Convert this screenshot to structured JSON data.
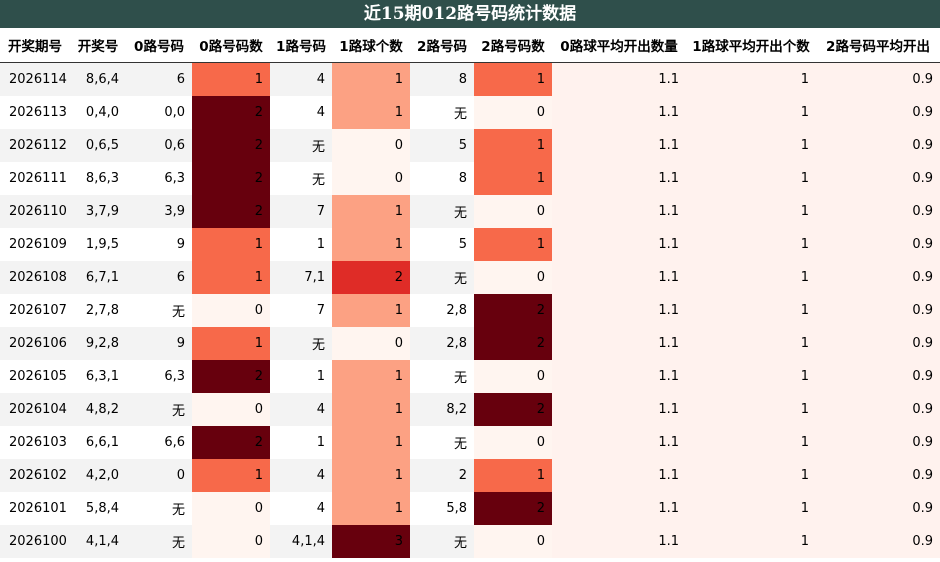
{
  "title": "近15期012路号码统计数据",
  "headers": [
    "开奖期号",
    "开奖号",
    "0路号码",
    "0路号码数",
    "1路号码",
    "1路球个数",
    "2路号码",
    "2路号码数",
    "0路球平均开出数量",
    "1路球平均开出个数",
    "2路号码平均开出"
  ],
  "colors": {
    "title_bg": "#2f4f4b",
    "heat_scale": [
      "#fff5f0",
      "#fca183",
      "#f7694a",
      "#df2c27",
      "#67000d"
    ],
    "average_bg": "#fff2ee"
  },
  "rows": [
    {
      "issue": "2026114",
      "draw": "8,6,4",
      "r0": "6",
      "r0n": "1",
      "r1": "4",
      "r1n": "1",
      "r2": "8",
      "r2n": "1",
      "avg0": "1.1",
      "avg1": "1",
      "avg2": "0.9",
      "h0": 2,
      "h1": 1,
      "h2": 2
    },
    {
      "issue": "2026113",
      "draw": "0,4,0",
      "r0": "0,0",
      "r0n": "2",
      "r1": "4",
      "r1n": "1",
      "r2": "无",
      "r2n": "0",
      "avg0": "1.1",
      "avg1": "1",
      "avg2": "0.9",
      "h0": 4,
      "h1": 1,
      "h2": 0
    },
    {
      "issue": "2026112",
      "draw": "0,6,5",
      "r0": "0,6",
      "r0n": "2",
      "r1": "无",
      "r1n": "0",
      "r2": "5",
      "r2n": "1",
      "avg0": "1.1",
      "avg1": "1",
      "avg2": "0.9",
      "h0": 4,
      "h1": 0,
      "h2": 2
    },
    {
      "issue": "2026111",
      "draw": "8,6,3",
      "r0": "6,3",
      "r0n": "2",
      "r1": "无",
      "r1n": "0",
      "r2": "8",
      "r2n": "1",
      "avg0": "1.1",
      "avg1": "1",
      "avg2": "0.9",
      "h0": 4,
      "h1": 0,
      "h2": 2
    },
    {
      "issue": "2026110",
      "draw": "3,7,9",
      "r0": "3,9",
      "r0n": "2",
      "r1": "7",
      "r1n": "1",
      "r2": "无",
      "r2n": "0",
      "avg0": "1.1",
      "avg1": "1",
      "avg2": "0.9",
      "h0": 4,
      "h1": 1,
      "h2": 0
    },
    {
      "issue": "2026109",
      "draw": "1,9,5",
      "r0": "9",
      "r0n": "1",
      "r1": "1",
      "r1n": "1",
      "r2": "5",
      "r2n": "1",
      "avg0": "1.1",
      "avg1": "1",
      "avg2": "0.9",
      "h0": 2,
      "h1": 1,
      "h2": 2
    },
    {
      "issue": "2026108",
      "draw": "6,7,1",
      "r0": "6",
      "r0n": "1",
      "r1": "7,1",
      "r1n": "2",
      "r2": "无",
      "r2n": "0",
      "avg0": "1.1",
      "avg1": "1",
      "avg2": "0.9",
      "h0": 2,
      "h1": 3,
      "h2": 0
    },
    {
      "issue": "2026107",
      "draw": "2,7,8",
      "r0": "无",
      "r0n": "0",
      "r1": "7",
      "r1n": "1",
      "r2": "2,8",
      "r2n": "2",
      "avg0": "1.1",
      "avg1": "1",
      "avg2": "0.9",
      "h0": 0,
      "h1": 1,
      "h2": 4
    },
    {
      "issue": "2026106",
      "draw": "9,2,8",
      "r0": "9",
      "r0n": "1",
      "r1": "无",
      "r1n": "0",
      "r2": "2,8",
      "r2n": "2",
      "avg0": "1.1",
      "avg1": "1",
      "avg2": "0.9",
      "h0": 2,
      "h1": 0,
      "h2": 4
    },
    {
      "issue": "2026105",
      "draw": "6,3,1",
      "r0": "6,3",
      "r0n": "2",
      "r1": "1",
      "r1n": "1",
      "r2": "无",
      "r2n": "0",
      "avg0": "1.1",
      "avg1": "1",
      "avg2": "0.9",
      "h0": 4,
      "h1": 1,
      "h2": 0
    },
    {
      "issue": "2026104",
      "draw": "4,8,2",
      "r0": "无",
      "r0n": "0",
      "r1": "4",
      "r1n": "1",
      "r2": "8,2",
      "r2n": "2",
      "avg0": "1.1",
      "avg1": "1",
      "avg2": "0.9",
      "h0": 0,
      "h1": 1,
      "h2": 4
    },
    {
      "issue": "2026103",
      "draw": "6,6,1",
      "r0": "6,6",
      "r0n": "2",
      "r1": "1",
      "r1n": "1",
      "r2": "无",
      "r2n": "0",
      "avg0": "1.1",
      "avg1": "1",
      "avg2": "0.9",
      "h0": 4,
      "h1": 1,
      "h2": 0
    },
    {
      "issue": "2026102",
      "draw": "4,2,0",
      "r0": "0",
      "r0n": "1",
      "r1": "4",
      "r1n": "1",
      "r2": "2",
      "r2n": "1",
      "avg0": "1.1",
      "avg1": "1",
      "avg2": "0.9",
      "h0": 2,
      "h1": 1,
      "h2": 2
    },
    {
      "issue": "2026101",
      "draw": "5,8,4",
      "r0": "无",
      "r0n": "0",
      "r1": "4",
      "r1n": "1",
      "r2": "5,8",
      "r2n": "2",
      "avg0": "1.1",
      "avg1": "1",
      "avg2": "0.9",
      "h0": 0,
      "h1": 1,
      "h2": 4
    },
    {
      "issue": "2026100",
      "draw": "4,1,4",
      "r0": "无",
      "r0n": "0",
      "r1": "4,1,4",
      "r1n": "3",
      "r2": "无",
      "r2n": "0",
      "avg0": "1.1",
      "avg1": "1",
      "avg2": "0.9",
      "h0": 0,
      "h1": 4,
      "h2": 0
    }
  ]
}
